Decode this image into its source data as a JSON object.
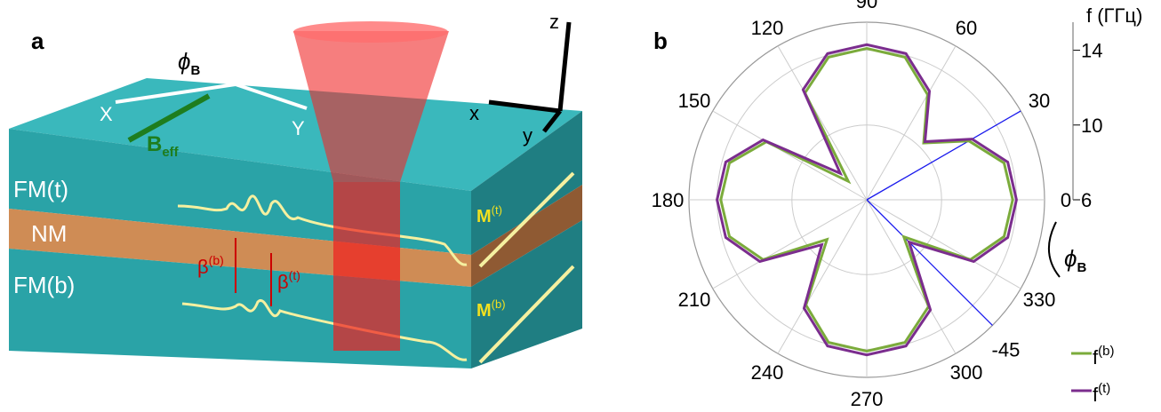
{
  "panel_a": {
    "letter": "a",
    "layers": [
      "FM(t)",
      "NM",
      "FM(b)"
    ],
    "axes": {
      "X": "X",
      "Y": "Y",
      "x": "x",
      "y": "y",
      "z": "z"
    },
    "b_eff": {
      "base": "B",
      "sub": "eff"
    },
    "phi": {
      "base": "ϕ",
      "sub": "B"
    },
    "beta_b": {
      "base": "β",
      "sup": "(b)"
    },
    "beta_t": {
      "base": "β",
      "sup": "(t)"
    },
    "m_t": {
      "base": "M",
      "sup": "(t)"
    },
    "m_b": {
      "base": "M",
      "sup": "(b)"
    }
  },
  "chart_data": {
    "type": "polar",
    "letter": "b",
    "radial_label": "f (ГГц)",
    "angle_label": {
      "base": "ϕ",
      "sub": "B"
    },
    "x": [
      0,
      15,
      30,
      45,
      60,
      75,
      90,
      105,
      120,
      135,
      150,
      165,
      180,
      195,
      210,
      225,
      240,
      255,
      270,
      285,
      300,
      315,
      330,
      345
    ],
    "series": [
      {
        "name": {
          "base": "f",
          "sup": "(b)"
        },
        "color": "#7bab3b",
        "values": [
          13.8,
          13.6,
          12.3,
          10.3,
          12.5,
          13.9,
          14.1,
          13.9,
          12.6,
          7.4,
          12.2,
          13.6,
          13.8,
          13.6,
          12.4,
          9.0,
          12.5,
          13.9,
          14.1,
          13.9,
          12.6,
          8.8,
          12.4,
          13.6
        ]
      },
      {
        "name": {
          "base": "f",
          "sup": "(t)"
        },
        "color": "#7b2d8e",
        "values": [
          14.0,
          13.8,
          12.5,
          10.4,
          12.7,
          14.1,
          14.3,
          14.1,
          12.8,
          8.0,
          12.4,
          13.8,
          14.0,
          13.8,
          12.6,
          9.4,
          12.7,
          14.1,
          14.3,
          14.1,
          12.8,
          9.2,
          12.6,
          13.8
        ]
      }
    ],
    "ylim": [
      6,
      15.5
    ],
    "yticks": [
      6,
      10,
      14
    ],
    "thetaticks": [
      0,
      30,
      60,
      90,
      120,
      150,
      180,
      210,
      240,
      270,
      300,
      330
    ],
    "annotations": [
      {
        "angle": 30
      },
      {
        "angle": -45,
        "label": "-45"
      }
    ],
    "grid": true
  }
}
